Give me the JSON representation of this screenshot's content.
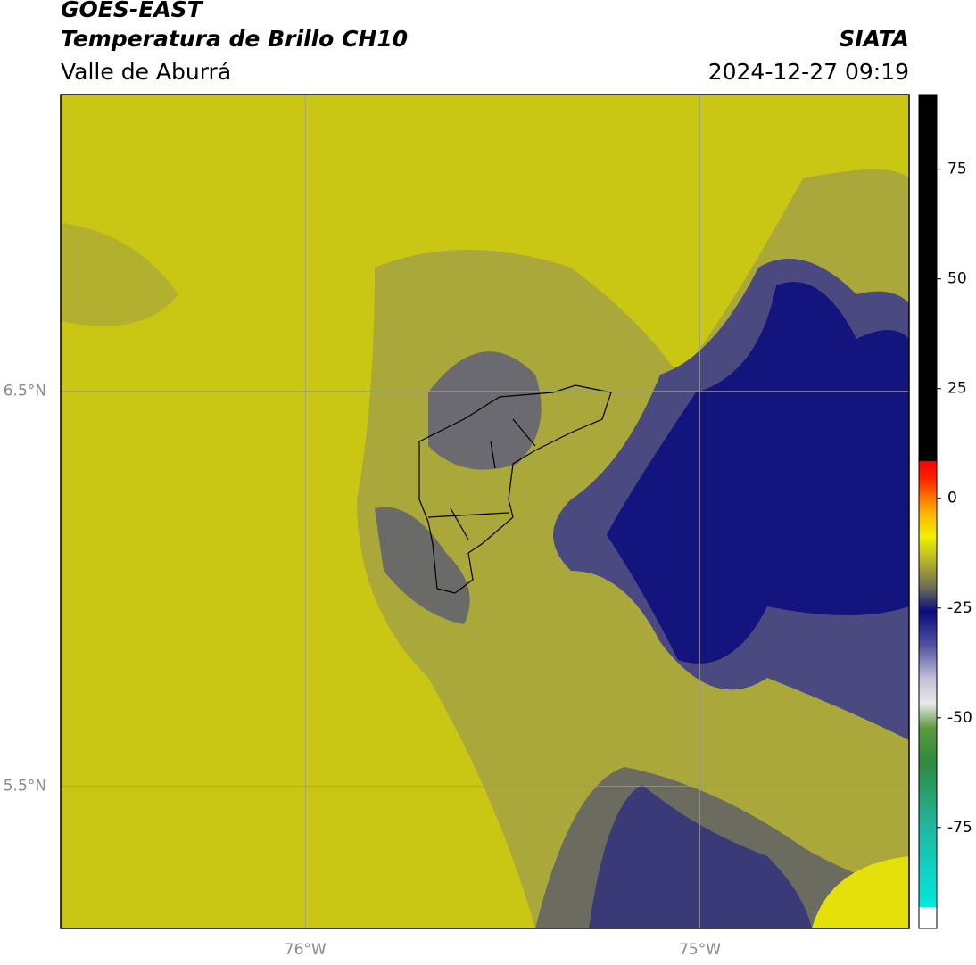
{
  "header": {
    "title": "GOES-EAST",
    "subtitle": "Temperatura de Brillo CH10",
    "region": "Valle de Aburrá",
    "source": "SIATA",
    "datetime": "2024-12-27 09:19"
  },
  "map": {
    "xlim": [
      -76.62,
      -74.47
    ],
    "ylim": [
      5.14,
      7.25
    ],
    "xticks": [
      {
        "value": -76,
        "label": "76°W"
      },
      {
        "value": -75,
        "label": "75°W"
      }
    ],
    "yticks": [
      {
        "value": 6.5,
        "label": "6.5°N"
      },
      {
        "value": 5.5,
        "label": "5.5°N"
      }
    ],
    "grid": true
  },
  "colorbar": {
    "lim": [
      -98,
      92
    ],
    "ticks": [
      75,
      50,
      25,
      0,
      -25,
      -50,
      -75
    ]
  }
}
